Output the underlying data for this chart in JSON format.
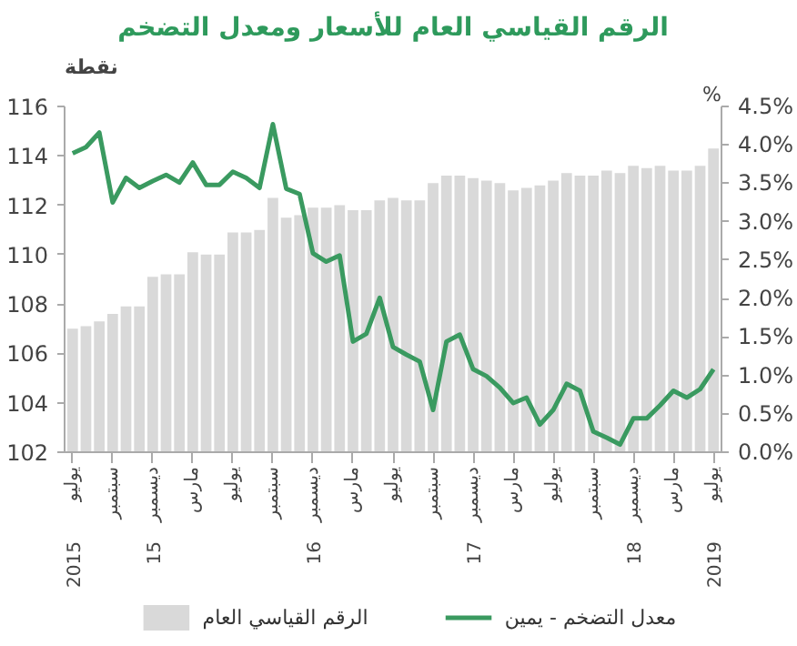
{
  "chart_data": {
    "type": "bar",
    "title": "الرقم القياسي العام للأسعار ومعدل التضخم",
    "ylabel": "نقطة",
    "y2label": "%",
    "categories": [
      "يوليو\n2015",
      null,
      null,
      "سبتمبر",
      null,
      null,
      "ديسمبر\n15",
      null,
      null,
      "مارس",
      null,
      null,
      "يوليو",
      null,
      null,
      "سبتمبر",
      null,
      null,
      "ديسمبر\n16",
      null,
      null,
      "مارس",
      null,
      null,
      "يوليو",
      null,
      null,
      "سبتمبر",
      null,
      null,
      "ديسمبر\n17",
      null,
      null,
      "مارس",
      null,
      null,
      "يوليو",
      null,
      null,
      "سبتمبر",
      null,
      null,
      "ديسمبر\n18",
      null,
      null,
      "مارس",
      null,
      null,
      "يوليو\n2019"
    ],
    "series": [
      {
        "name": "الرقم القياسي العام",
        "color": "#d9d9d9",
        "values": [
          107.0,
          107.1,
          107.3,
          107.6,
          107.9,
          107.9,
          109.1,
          109.2,
          109.2,
          110.1,
          110.0,
          110.0,
          110.9,
          110.9,
          111.0,
          112.3,
          111.5,
          111.6,
          111.9,
          111.9,
          112.0,
          111.8,
          111.8,
          112.2,
          112.3,
          112.2,
          112.2,
          112.9,
          113.2,
          113.2,
          113.1,
          113.0,
          112.9,
          112.6,
          112.7,
          112.8,
          113.0,
          113.3,
          113.2,
          113.2,
          113.4,
          113.3,
          113.6,
          113.5,
          113.6,
          113.4,
          113.4,
          113.6,
          114.3
        ]
      },
      {
        "name": "معدل التضخم - يمين",
        "type": "line",
        "axis": "y2",
        "color": "#3a9a60",
        "values": [
          3.89,
          3.97,
          4.16,
          3.25,
          3.57,
          3.44,
          3.53,
          3.61,
          3.51,
          3.77,
          3.48,
          3.48,
          3.65,
          3.57,
          3.44,
          4.27,
          3.43,
          3.36,
          2.59,
          2.48,
          2.56,
          1.44,
          1.54,
          2.01,
          1.37,
          1.27,
          1.18,
          0.55,
          1.44,
          1.53,
          1.08,
          0.99,
          0.84,
          0.64,
          0.71,
          0.36,
          0.55,
          0.89,
          0.8,
          0.27,
          0.19,
          0.1,
          0.44,
          0.44,
          0.61,
          0.8,
          0.71,
          0.82,
          1.08
        ]
      }
    ],
    "ylim": [
      102,
      116
    ],
    "yticks": [
      102,
      104,
      106,
      108,
      110,
      112,
      114,
      116
    ],
    "y2lim": [
      0,
      4.5
    ],
    "y2ticks": [
      {
        "value": 0,
        "label": "0.0%"
      },
      {
        "value": 0.5,
        "label": "0.5%"
      },
      {
        "value": 1,
        "label": "1.0%"
      },
      {
        "value": 1.5,
        "label": "1.5%"
      },
      {
        "value": 2,
        "label": "2.0%"
      },
      {
        "value": 2.5,
        "label": "2.5%"
      },
      {
        "value": 3,
        "label": "3.0%"
      },
      {
        "value": 3.5,
        "label": "3.5%"
      },
      {
        "value": 4,
        "label": "4.0%"
      },
      {
        "value": 4.5,
        "label": "4.5%"
      }
    ],
    "legend": "bottom",
    "grid": false,
    "line_style": "solid"
  }
}
